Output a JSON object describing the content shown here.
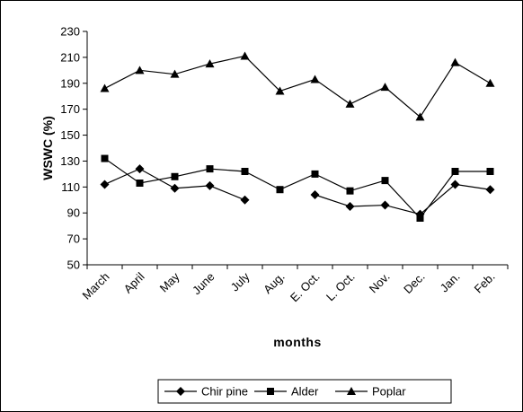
{
  "chart_data": {
    "type": "line",
    "xlabel": "months",
    "ylabel": "WSWC (%)",
    "categories": [
      "March",
      "April",
      "May",
      "June",
      "July",
      "Aug.",
      "E. Oct.",
      "L. Oct.",
      "Nov.",
      "Dec.",
      "Jan.",
      "Feb."
    ],
    "ylim": [
      50,
      230
    ],
    "yticks": [
      50,
      70,
      90,
      110,
      130,
      150,
      170,
      190,
      210,
      230
    ],
    "grid": false,
    "legend_position": "bottom",
    "series": [
      {
        "name": "Chir pine",
        "marker": "diamond",
        "values": [
          112,
          124,
          109,
          111,
          100,
          null,
          104,
          95,
          96,
          89,
          112,
          108
        ]
      },
      {
        "name": "Alder",
        "marker": "square",
        "values": [
          132,
          113,
          118,
          124,
          122,
          108,
          120,
          107,
          115,
          86,
          122,
          122
        ]
      },
      {
        "name": "Poplar",
        "marker": "triangle",
        "values": [
          186,
          200,
          197,
          205,
          211,
          184,
          193,
          174,
          187,
          164,
          206,
          190
        ]
      }
    ],
    "colors": {
      "line": "#000000",
      "background": "#ffffff"
    }
  }
}
